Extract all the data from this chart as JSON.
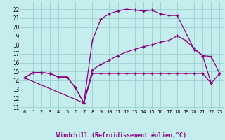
{
  "xlabel": "Windchill (Refroidissement éolien,°C)",
  "xlim": [
    -0.5,
    23.5
  ],
  "ylim": [
    10.8,
    22.8
  ],
  "yticks": [
    11,
    12,
    13,
    14,
    15,
    16,
    17,
    18,
    19,
    20,
    21,
    22
  ],
  "xticks": [
    0,
    1,
    2,
    3,
    4,
    5,
    6,
    7,
    8,
    9,
    10,
    11,
    12,
    13,
    14,
    15,
    16,
    17,
    18,
    19,
    20,
    21,
    22,
    23
  ],
  "bg_color": "#c5eded",
  "grid_color": "#a0d4d4",
  "line_color": "#880088",
  "series": [
    {
      "x": [
        0,
        1,
        2,
        3,
        4,
        5,
        6,
        7,
        8,
        9,
        10,
        11,
        12,
        13,
        14,
        15,
        16,
        17,
        18,
        19,
        20,
        21,
        22,
        23
      ],
      "y": [
        14.3,
        14.9,
        14.9,
        14.8,
        14.4,
        14.4,
        13.2,
        11.5,
        14.8,
        14.8,
        14.8,
        14.8,
        14.8,
        14.8,
        14.8,
        14.8,
        14.8,
        14.8,
        14.8,
        14.8,
        14.8,
        14.8,
        13.7,
        14.8
      ]
    },
    {
      "x": [
        0,
        1,
        2,
        3,
        4,
        5,
        6,
        7,
        8,
        9,
        10,
        11,
        12,
        13,
        14,
        15,
        16,
        17,
        18,
        19,
        20,
        21,
        22,
        23
      ],
      "y": [
        14.3,
        14.9,
        14.9,
        14.8,
        14.4,
        14.4,
        13.2,
        11.5,
        15.2,
        15.8,
        16.3,
        16.8,
        17.2,
        17.5,
        17.8,
        18.0,
        18.3,
        18.5,
        19.0,
        18.5,
        17.6,
        16.8,
        16.7,
        14.8
      ]
    },
    {
      "x": [
        0,
        7,
        8,
        9,
        10,
        11,
        12,
        13,
        14,
        15,
        16,
        17,
        18,
        20,
        21,
        22
      ],
      "y": [
        14.3,
        11.5,
        18.5,
        20.9,
        21.5,
        21.8,
        22.0,
        21.9,
        21.8,
        21.9,
        21.5,
        21.3,
        21.3,
        17.5,
        16.8,
        13.7
      ]
    }
  ]
}
